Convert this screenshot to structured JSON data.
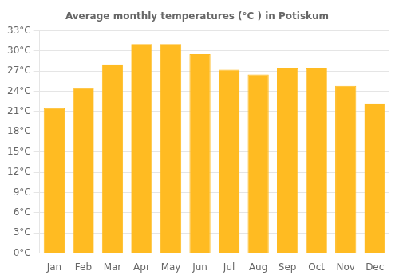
{
  "chart_data": {
    "type": "bar",
    "title": "Average monthly temperatures (°C ) in Potiskum",
    "categories": [
      "Jan",
      "Feb",
      "Mar",
      "Apr",
      "May",
      "Jun",
      "Jul",
      "Aug",
      "Sep",
      "Oct",
      "Nov",
      "Dec"
    ],
    "values": [
      21.5,
      24.5,
      28.0,
      31.0,
      31.0,
      29.5,
      27.2,
      26.5,
      27.5,
      27.5,
      24.8,
      22.2
    ],
    "color": "#FFBB22",
    "ylim": [
      0,
      33
    ],
    "yticks": [
      {
        "value": 0,
        "label": "0°C"
      },
      {
        "value": 3,
        "label": "3°C"
      },
      {
        "value": 6,
        "label": "6°C"
      },
      {
        "value": 9,
        "label": "9°C"
      },
      {
        "value": 12,
        "label": "12°C"
      },
      {
        "value": 15,
        "label": "15°C"
      },
      {
        "value": 18,
        "label": "18°C"
      },
      {
        "value": 21,
        "label": "21°C"
      },
      {
        "value": 24,
        "label": "24°C"
      },
      {
        "value": 27,
        "label": "27°C"
      },
      {
        "value": 30,
        "label": "30°C"
      },
      {
        "value": 33,
        "label": "33°C"
      }
    ],
    "grid": true
  }
}
